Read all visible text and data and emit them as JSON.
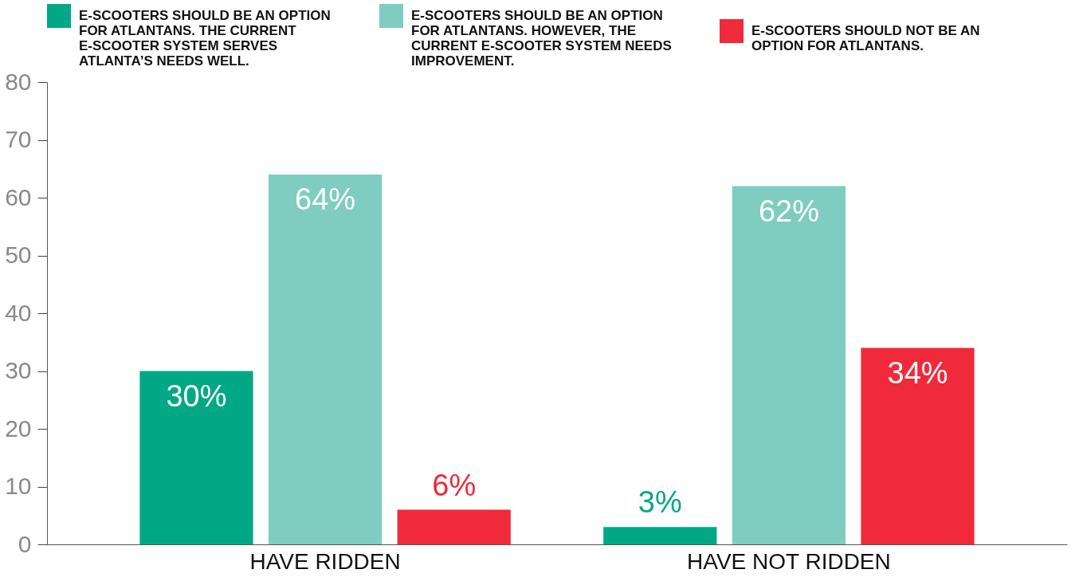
{
  "chart_data": {
    "type": "bar",
    "categories": [
      "HAVE RIDDEN",
      "HAVE NOT RIDDEN"
    ],
    "series": [
      {
        "name": "E-SCOOTERS SHOULD BE AN OPTION FOR ATLANTANS. THE CURRENT E-SCOOTER SYSTEM SERVES ATLANTA’S NEEDS WELL.",
        "color": "#00a886",
        "values": [
          30,
          3
        ],
        "value_labels": [
          "30%",
          "3%"
        ]
      },
      {
        "name": "E-SCOOTERS SHOULD BE AN OPTION FOR ATLANTANS. HOWEVER, THE CURRENT E-SCOOTER SYSTEM NEEDS IMPROVEMENT.",
        "color": "#7ecdc0",
        "values": [
          64,
          62
        ],
        "value_labels": [
          "64%",
          "62%"
        ]
      },
      {
        "name": "E-SCOOTERS SHOULD NOT BE AN OPTION FOR ATLANTANS.",
        "color": "#f02a3a",
        "values": [
          6,
          34
        ],
        "value_labels": [
          "6%",
          "34%"
        ]
      }
    ],
    "ylim": [
      0,
      80
    ],
    "yticks": [
      0,
      10,
      20,
      30,
      40,
      50,
      60,
      70,
      80
    ],
    "grid": false,
    "legend": "top"
  }
}
